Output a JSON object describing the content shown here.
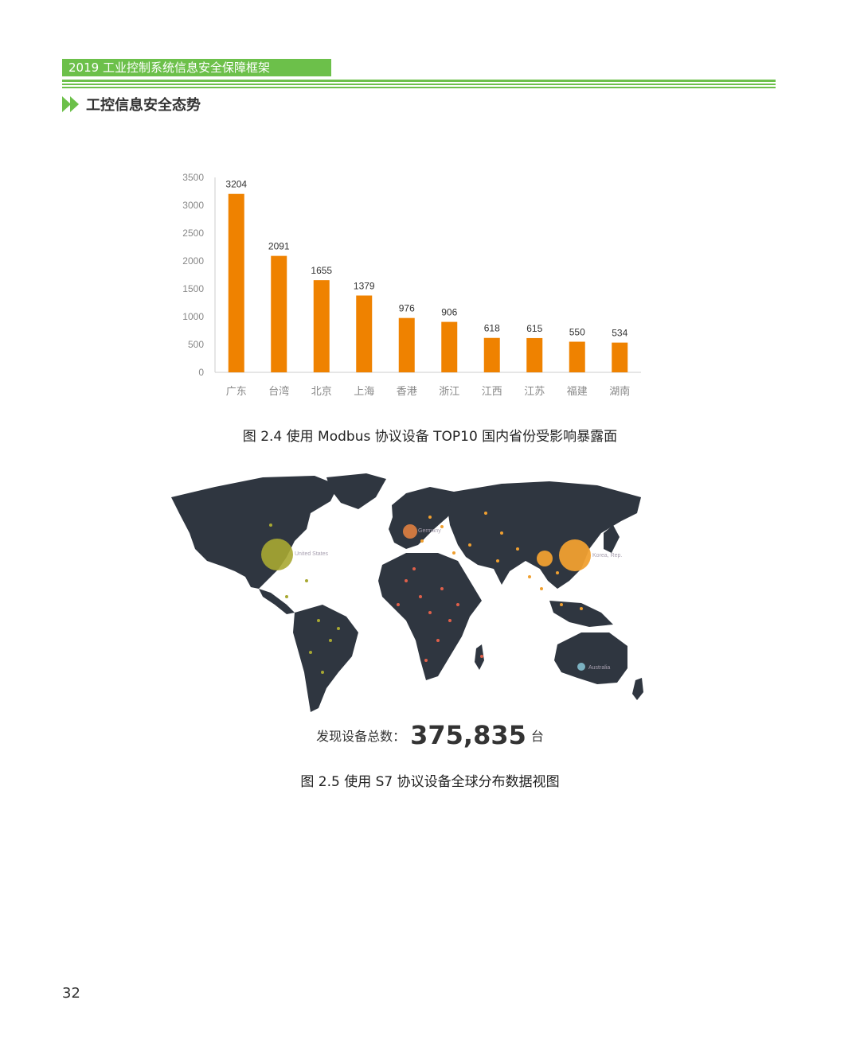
{
  "header": {
    "title": "2019 工业控制系统信息安全保障框架"
  },
  "section": {
    "title": "工控信息安全态势"
  },
  "figure1": {
    "caption": "图 2.4 使用 Modbus 协议设备 TOP10 国内省份受影响暴露面"
  },
  "figure2": {
    "caption": "图 2.5 使用 S7 协议设备全球分布数据视图",
    "total_label": "发现设备总数：",
    "total_value": "375,835",
    "total_unit": "台",
    "map_labels": {
      "us": "United States",
      "germany": "Germany",
      "korea": "Korea, Rep.",
      "australia": "Australia"
    },
    "colors": {
      "land": "#2f3640",
      "bubble_us": "#a8a832",
      "bubble_orange": "#f0a030",
      "bubble_red": "#e0604a",
      "bubble_blue": "#7fb8c8"
    }
  },
  "chart_data": {
    "type": "bar",
    "categories": [
      "广东",
      "台湾",
      "北京",
      "上海",
      "香港",
      "浙江",
      "江西",
      "江苏",
      "福建",
      "湖南"
    ],
    "values": [
      3204,
      2091,
      1655,
      1379,
      976,
      906,
      618,
      615,
      550,
      534
    ],
    "yticks": [
      0,
      500,
      1000,
      1500,
      2000,
      2500,
      3000,
      3500
    ],
    "ylim": [
      0,
      3500
    ],
    "bar_color": "#ef8200",
    "grid": false
  },
  "page": {
    "number": "32"
  }
}
